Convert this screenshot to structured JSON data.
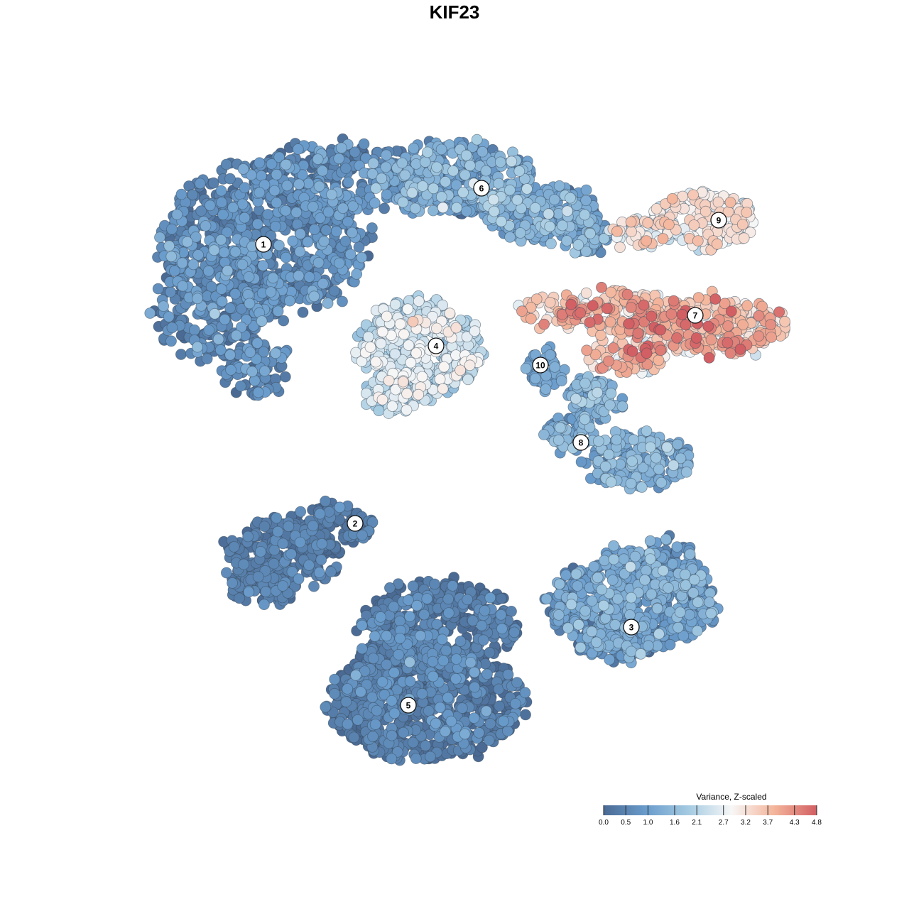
{
  "chart_data": {
    "type": "scatter",
    "title": "KIF23",
    "colorbar": {
      "title": "Variance, Z-scaled",
      "min": 0.0,
      "max": 4.8,
      "ticks": [
        "0.0",
        "0.5",
        "1.0",
        "1.6",
        "2.1",
        "2.7",
        "3.2",
        "3.7",
        "4.3",
        "4.8"
      ],
      "colors": [
        "#4a6a94",
        "#6a9ccc",
        "#a5cbe2",
        "#f7f7f7",
        "#f4b59b",
        "#d25f63"
      ]
    },
    "clusters": [
      {
        "label": "1",
        "mean_value": 0.55
      },
      {
        "label": "2",
        "mean_value": 0.25
      },
      {
        "label": "3",
        "mean_value": 0.9
      },
      {
        "label": "4",
        "mean_value": 2.3
      },
      {
        "label": "5",
        "mean_value": 0.25
      },
      {
        "label": "6",
        "mean_value": 1.1
      },
      {
        "label": "7",
        "mean_value": 3.6
      },
      {
        "label": "8",
        "mean_value": 1.2
      },
      {
        "label": "9",
        "mean_value": 3.0
      },
      {
        "label": "10",
        "mean_value": 1.0
      }
    ]
  }
}
